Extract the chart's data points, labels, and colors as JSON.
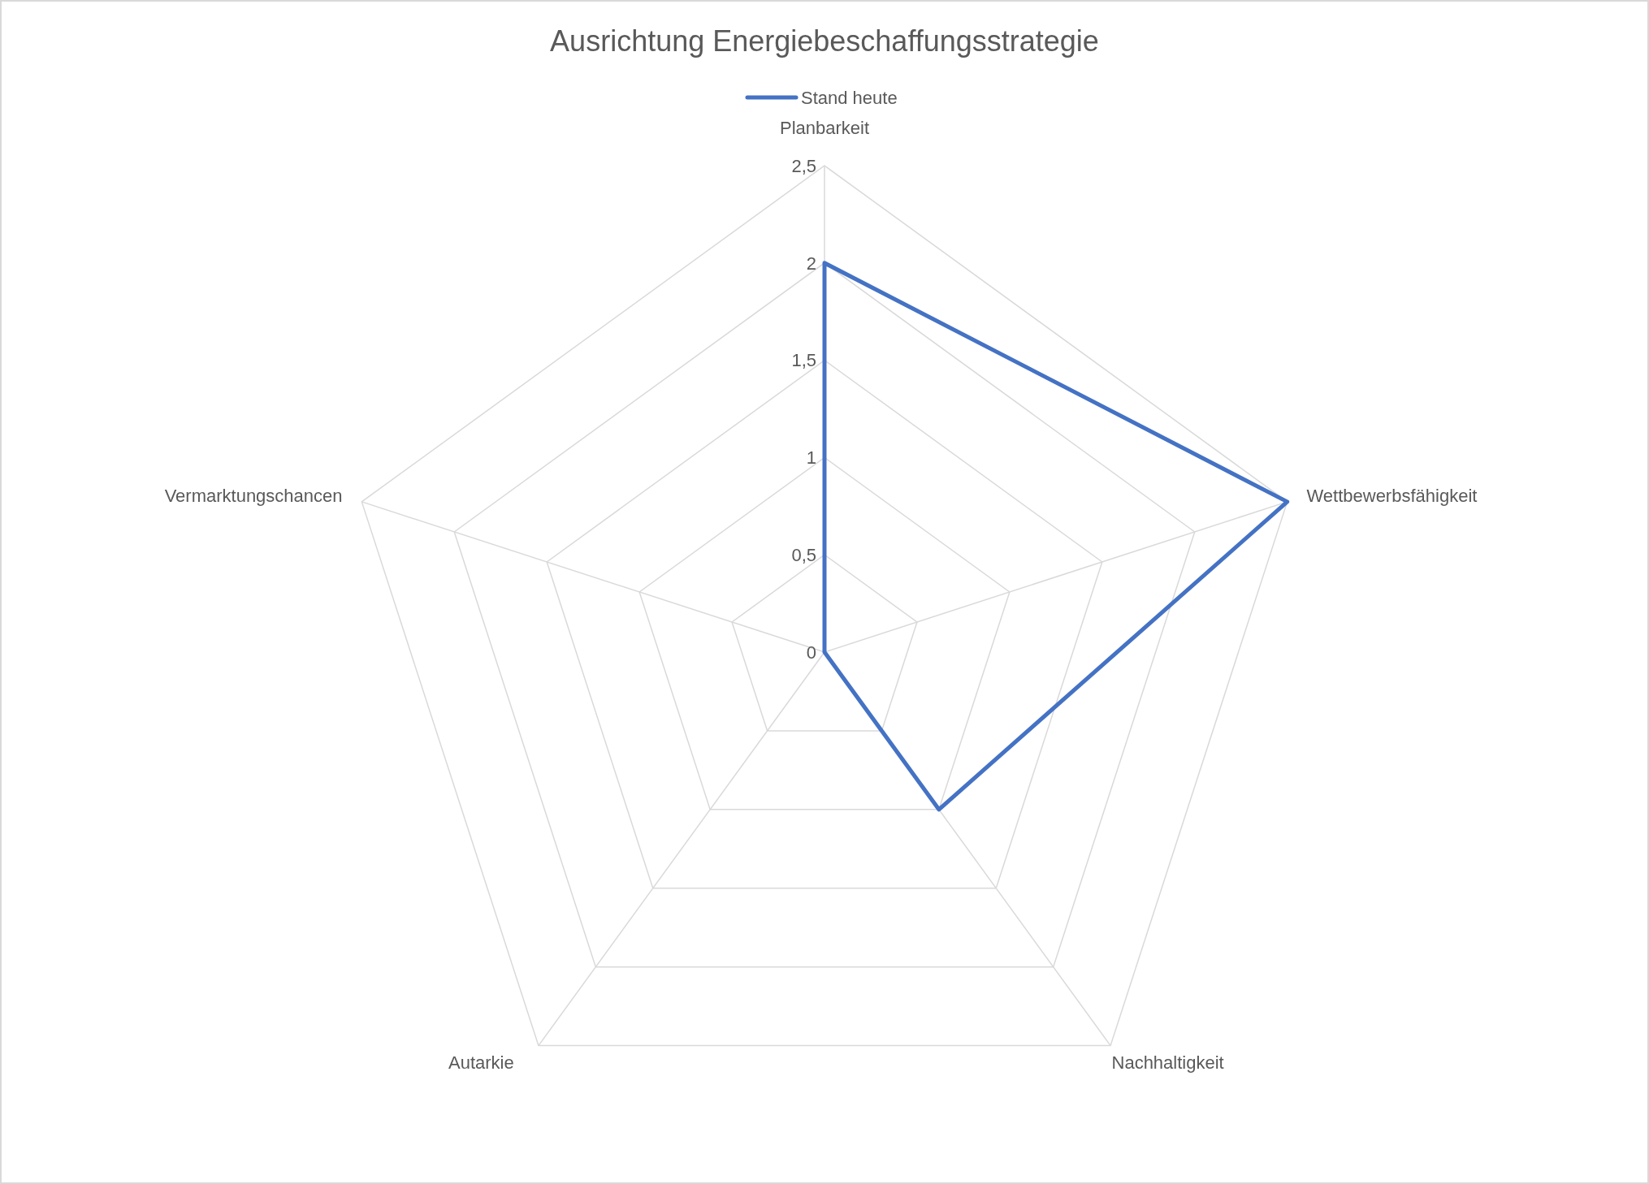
{
  "chart_data": {
    "type": "radar",
    "title": "Ausrichtung Energiebeschaffungsstrategie",
    "categories": [
      "Planbarkeit",
      "Wettbewerbsfähigkeit",
      "Nachhaltigkeit",
      "Autarkie",
      "Vermarktungschancen"
    ],
    "series": [
      {
        "name": "Stand heute",
        "color": "#4472c4",
        "values": [
          2,
          2.5,
          1,
          0,
          0
        ]
      }
    ],
    "ylim": [
      0,
      2.5
    ],
    "yticks": [
      {
        "value": 0,
        "label": "0"
      },
      {
        "value": 0.5,
        "label": "0,5"
      },
      {
        "value": 1,
        "label": "1"
      },
      {
        "value": 1.5,
        "label": "1,5"
      },
      {
        "value": 2,
        "label": "2"
      },
      {
        "value": 2.5,
        "label": "2,5"
      }
    ],
    "grid": true,
    "legend": "top"
  }
}
